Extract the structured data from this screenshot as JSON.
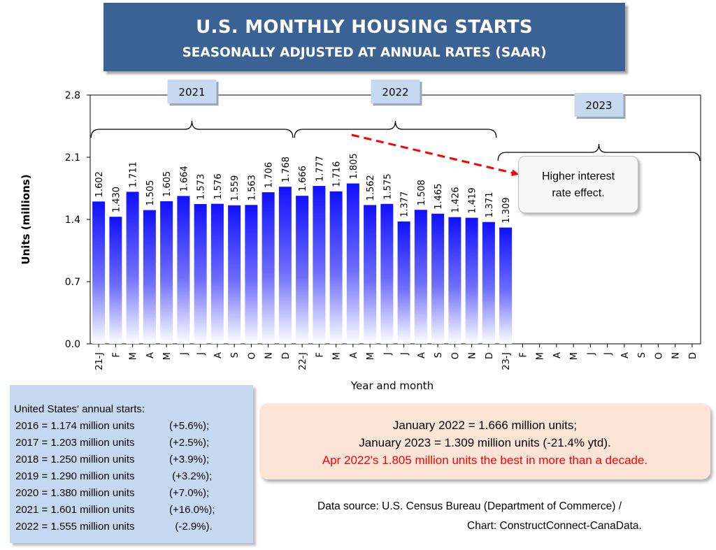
{
  "title": "U.S. MONTHLY HOUSING STARTS",
  "subtitle": "SEASONALLY ADJUSTED AT ANNUAL RATES (SAAR)",
  "chart_data": {
    "type": "bar",
    "ylabel": "Units (millions)",
    "xlabel": "Year and month",
    "ylim": [
      0,
      2.8
    ],
    "yticks": [
      "0.0",
      "0.7",
      "1.4",
      "2.1",
      "2.8"
    ],
    "categories": [
      "21-J",
      "F",
      "M",
      "A",
      "M",
      "J",
      "J",
      "A",
      "S",
      "O",
      "N",
      "D",
      "22-J",
      "F",
      "M",
      "A",
      "M",
      "J",
      "J",
      "A",
      "S",
      "O",
      "N",
      "D",
      "23-J",
      "F",
      "M",
      "A",
      "M",
      "J",
      "J",
      "A",
      "S",
      "O",
      "N",
      "D"
    ],
    "values": [
      1.602,
      1.43,
      1.711,
      1.505,
      1.605,
      1.664,
      1.573,
      1.576,
      1.559,
      1.563,
      1.706,
      1.768,
      1.666,
      1.777,
      1.716,
      1.805,
      1.562,
      1.575,
      1.377,
      1.508,
      1.465,
      1.426,
      1.419,
      1.371,
      1.309,
      null,
      null,
      null,
      null,
      null,
      null,
      null,
      null,
      null,
      null,
      null
    ],
    "data_labels": [
      "1.602",
      "1.430",
      "1.711",
      "1.505",
      "1.605",
      "1.664",
      "1.573",
      "1.576",
      "1.559",
      "1.563",
      "1.706",
      "1.768",
      "1.666",
      "1.777",
      "1.716",
      "1.805",
      "1.562",
      "1.575",
      "1.377",
      "1.508",
      "1.465",
      "1.426",
      "1.419",
      "1.371",
      "1.309",
      "",
      "",
      "",
      "",
      "",
      "",
      "",
      "",
      "",
      "",
      ""
    ],
    "year_labels": [
      "2021",
      "2022",
      "2023"
    ],
    "bar_color": "#0000ff",
    "arrow_color": "#ff0000",
    "grid": false
  },
  "callout": {
    "line1": "Higher interest",
    "line2": "rate effect."
  },
  "annual_box": {
    "header": "United States' annual starts:",
    "rows": [
      {
        "text": "2016 = 1.174 million units",
        "pct": "(+5.6%);"
      },
      {
        "text": "2017 = 1.203 million units",
        "pct": "(+2.5%);"
      },
      {
        "text": "2018 = 1.250 million units",
        "pct": "(+3.9%);"
      },
      {
        "text": "2019 = 1.290 million units",
        "pct": " (+3.2%);"
      },
      {
        "text": "2020 = 1.380 million units",
        "pct": "(+7.0%);"
      },
      {
        "text": "2021 = 1.601 million units",
        "pct": "(+16.0%);"
      },
      {
        "text": "2022 = 1.555 million units",
        "pct": "  (-2.9%)."
      }
    ]
  },
  "jan_box": {
    "line1": "January 2022 = 1.666 million units;",
    "line2": "January 2023 = 1.309 million units (-21.4% ytd).",
    "line3": "Apr 2022's 1.805 million units the best in more than a decade.",
    "highlight_color": "#ff0000"
  },
  "source": {
    "line1": "Data source: U.S. Census Bureau (Department of Commerce) /",
    "line2": "Chart: ConstructConnect-CanaData."
  }
}
